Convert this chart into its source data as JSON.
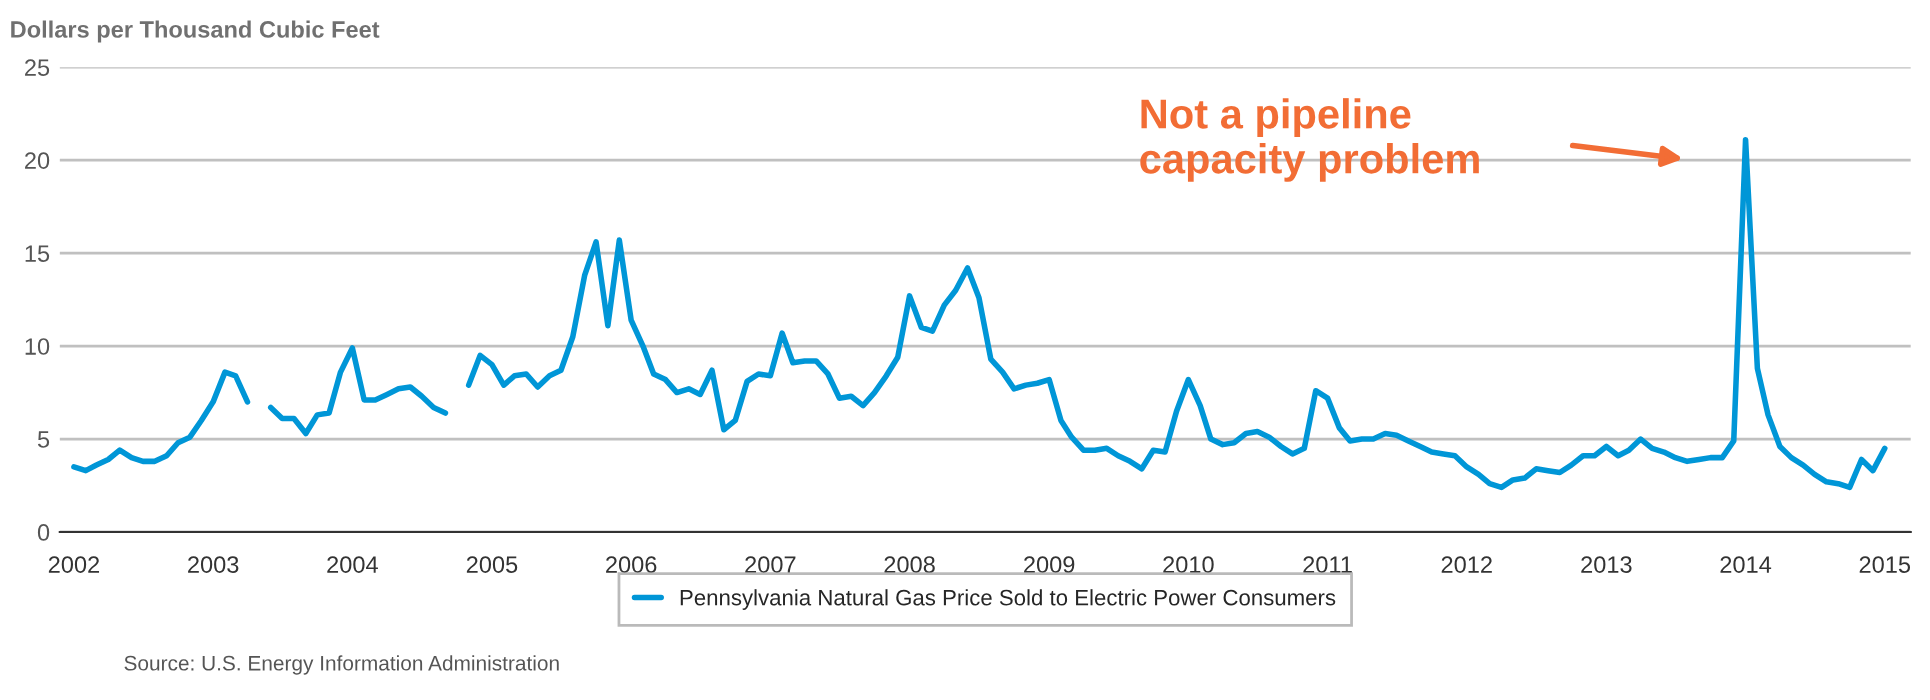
{
  "chart_data": {
    "type": "line",
    "ylabel": "Dollars per Thousand Cubic Feet",
    "series": [
      {
        "name": "Pennsylvania Natural Gas Price Sold to Electric Power Consumers",
        "color": "#0096d7",
        "x": [
          "2002-01",
          "2002-02",
          "2002-03",
          "2002-04",
          "2002-05",
          "2002-06",
          "2002-07",
          "2002-08",
          "2002-09",
          "2002-10",
          "2002-11",
          "2002-12",
          "2003-01",
          "2003-02",
          "2003-03",
          "2003-04",
          "2003-05",
          "2003-06",
          "2003-07",
          "2003-08",
          "2003-09",
          "2003-10",
          "2003-11",
          "2003-12",
          "2004-01",
          "2004-02",
          "2004-03",
          "2004-04",
          "2004-05",
          "2004-06",
          "2004-07",
          "2004-08",
          "2004-09",
          "2004-10",
          "2004-11",
          "2004-12",
          "2005-01",
          "2005-02",
          "2005-03",
          "2005-04",
          "2005-05",
          "2005-06",
          "2005-07",
          "2005-08",
          "2005-09",
          "2005-10",
          "2005-11",
          "2005-12",
          "2006-01",
          "2006-02",
          "2006-03",
          "2006-04",
          "2006-05",
          "2006-06",
          "2006-07",
          "2006-08",
          "2006-09",
          "2006-10",
          "2006-11",
          "2006-12",
          "2007-01",
          "2007-02",
          "2007-03",
          "2007-04",
          "2007-05",
          "2007-06",
          "2007-07",
          "2007-08",
          "2007-09",
          "2007-10",
          "2007-11",
          "2007-12",
          "2008-01",
          "2008-02",
          "2008-03",
          "2008-04",
          "2008-05",
          "2008-06",
          "2008-07",
          "2008-08",
          "2008-09",
          "2008-10",
          "2008-11",
          "2008-12",
          "2009-01",
          "2009-02",
          "2009-03",
          "2009-04",
          "2009-05",
          "2009-06",
          "2009-07",
          "2009-08",
          "2009-09",
          "2009-10",
          "2009-11",
          "2009-12",
          "2010-01",
          "2010-02",
          "2010-03",
          "2010-04",
          "2010-05",
          "2010-06",
          "2010-07",
          "2010-08",
          "2010-09",
          "2010-10",
          "2010-11",
          "2010-12",
          "2011-01",
          "2011-02",
          "2011-03",
          "2011-04",
          "2011-05",
          "2011-06",
          "2011-07",
          "2011-08",
          "2011-09",
          "2011-10",
          "2011-11",
          "2011-12",
          "2012-01",
          "2012-02",
          "2012-03",
          "2012-04",
          "2012-05",
          "2012-06",
          "2012-07",
          "2012-08",
          "2012-09",
          "2012-10",
          "2012-11",
          "2012-12",
          "2013-01",
          "2013-02",
          "2013-03",
          "2013-04",
          "2013-05",
          "2013-06",
          "2013-07",
          "2013-08",
          "2013-09",
          "2013-10",
          "2013-11",
          "2013-12",
          "2014-01",
          "2014-02",
          "2014-03",
          "2014-04",
          "2014-05",
          "2014-06",
          "2014-07",
          "2014-08",
          "2014-09",
          "2014-10",
          "2014-11",
          "2014-12",
          "2015-01"
        ],
        "values": [
          3.5,
          3.3,
          3.6,
          3.9,
          4.4,
          4.0,
          3.8,
          3.8,
          4.1,
          4.8,
          5.1,
          6.0,
          7.0,
          8.6,
          8.4,
          7.0,
          null,
          6.7,
          6.1,
          6.1,
          5.3,
          6.3,
          6.4,
          8.6,
          9.9,
          7.1,
          7.1,
          7.4,
          7.7,
          7.8,
          7.3,
          6.7,
          6.4,
          null,
          7.9,
          9.5,
          9.0,
          7.9,
          8.4,
          8.5,
          7.8,
          8.4,
          8.7,
          10.5,
          13.8,
          15.6,
          11.1,
          15.7,
          11.4,
          10.0,
          8.5,
          8.2,
          7.5,
          7.7,
          7.4,
          8.7,
          5.5,
          6.0,
          8.1,
          8.5,
          8.4,
          10.7,
          9.1,
          9.2,
          9.2,
          8.5,
          7.2,
          7.3,
          6.8,
          7.5,
          8.4,
          9.4,
          12.7,
          11.0,
          10.8,
          12.2,
          13.0,
          14.2,
          12.6,
          9.3,
          8.6,
          7.7,
          7.9,
          8.0,
          8.2,
          6.0,
          5.1,
          4.4,
          4.4,
          4.5,
          4.1,
          3.8,
          3.4,
          4.4,
          4.3,
          6.5,
          8.2,
          6.8,
          5.0,
          4.7,
          4.8,
          5.3,
          5.4,
          5.1,
          4.6,
          4.2,
          4.5,
          7.6,
          7.2,
          5.6,
          4.9,
          5.0,
          5.0,
          5.3,
          5.2,
          4.9,
          4.6,
          4.3,
          4.2,
          4.1,
          3.5,
          3.1,
          2.6,
          2.4,
          2.8,
          2.9,
          3.4,
          3.3,
          3.2,
          3.6,
          4.1,
          4.1,
          4.6,
          4.1,
          4.4,
          5.0,
          4.5,
          4.3,
          4.0,
          3.8,
          3.9,
          4.0,
          4.0,
          4.9,
          21.1,
          8.8,
          6.3,
          4.6,
          4.0,
          3.6,
          3.1,
          2.7,
          2.6,
          2.4,
          3.9,
          3.3,
          4.5
        ]
      }
    ],
    "xlim": [
      "2001-11-25",
      "2015-03-10"
    ],
    "xticks": [
      "2002",
      "2003",
      "2004",
      "2005",
      "2006",
      "2007",
      "2008",
      "2009",
      "2010",
      "2011",
      "2012",
      "2013",
      "2014",
      "2015"
    ],
    "ylim": [
      0,
      25
    ],
    "yticks": [
      0,
      5,
      10,
      15,
      20,
      25
    ],
    "grid": "y",
    "legend": "bottom",
    "marker": "none",
    "line_style": "solid",
    "annotations": [
      "Not a pipeline\ncapacity problem",
      "Source: U.S. Energy Information Administration"
    ]
  }
}
